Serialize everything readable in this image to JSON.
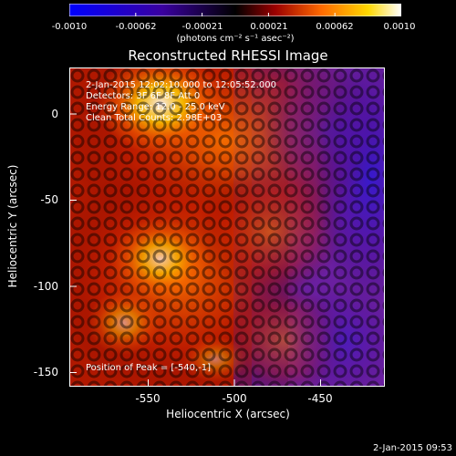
{
  "colorbar": {
    "ticks": [
      "-0.0010",
      "-0.00062",
      "-0.00021",
      "0.00021",
      "0.00062",
      "0.0010"
    ],
    "units": "(photons cm⁻² s⁻¹ asec⁻²)",
    "colors": [
      "#0000ff",
      "#3a00a0",
      "#000000",
      "#9b0000",
      "#ff6a00",
      "#ffd800",
      "#ffffff"
    ]
  },
  "title": "Reconstructed RHESSI Image",
  "info": {
    "time": "2-Jan-2015 12:02:10.000 to 12:05:52.000",
    "detectors": "Detectors: 3F 6F 8F  Att 0",
    "energy": "Energy Range: 12.0 - 25.0 keV",
    "clean": "Clean    Total Counts: 2.98E+03"
  },
  "peak": "Position of Peak = [-540,-1]",
  "axes": {
    "xlabel": "Heliocentric X (arcsec)",
    "ylabel": "Heliocentric Y (arcsec)",
    "xticks": [
      "-550",
      "-500",
      "-450"
    ],
    "yticks": [
      "0",
      "-50",
      "-100",
      "-150"
    ],
    "xlim": [
      -597,
      -414
    ],
    "ylim": [
      -167,
      18
    ]
  },
  "footer": "2-Jan-2015 09:53"
}
